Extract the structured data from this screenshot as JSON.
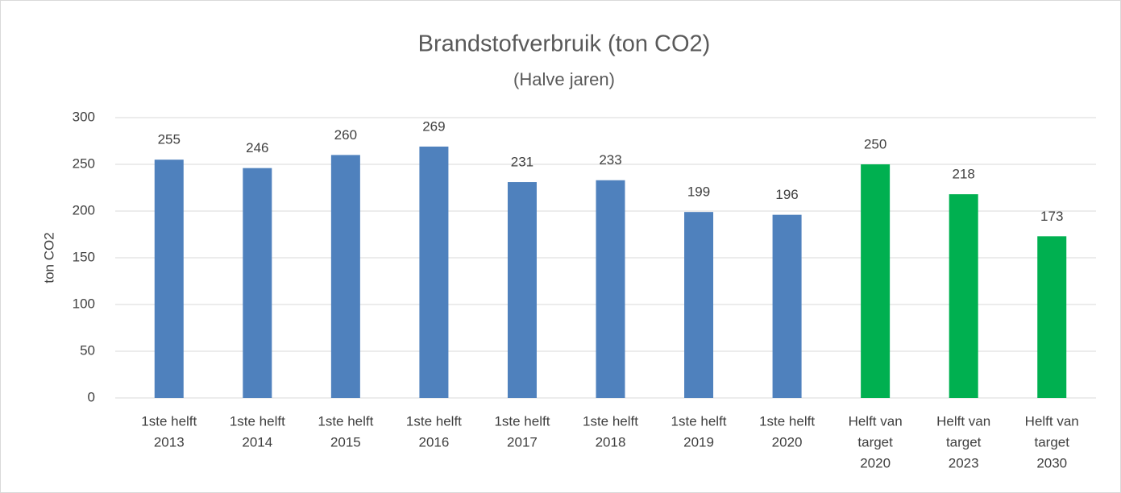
{
  "chart_data": {
    "type": "bar",
    "title": "Brandstofverbruik (ton CO2)",
    "subtitle": "(Halve jaren)",
    "y_label": "ton CO2",
    "categories": [
      [
        "1ste helft",
        "2013"
      ],
      [
        "1ste helft",
        "2014"
      ],
      [
        "1ste helft",
        "2015"
      ],
      [
        "1ste helft",
        "2016"
      ],
      [
        "1ste helft",
        "2017"
      ],
      [
        "1ste helft",
        "2018"
      ],
      [
        "1ste helft",
        "2019"
      ],
      [
        "1ste helft",
        "2020"
      ],
      [
        "Helft van",
        "target",
        "2020"
      ],
      [
        "Helft van",
        "target",
        "2023"
      ],
      [
        "Helft van",
        "target",
        "2030"
      ]
    ],
    "values": [
      255,
      246,
      260,
      269,
      231,
      233,
      199,
      196,
      250,
      218,
      173
    ],
    "colors": [
      "#4f81bd",
      "#4f81bd",
      "#4f81bd",
      "#4f81bd",
      "#4f81bd",
      "#4f81bd",
      "#4f81bd",
      "#4f81bd",
      "#00b050",
      "#00b050",
      "#00b050"
    ],
    "ylim": [
      0,
      300
    ],
    "yticks": [
      0,
      50,
      100,
      150,
      200,
      250,
      300
    ],
    "grid": true,
    "data_labels": true
  }
}
